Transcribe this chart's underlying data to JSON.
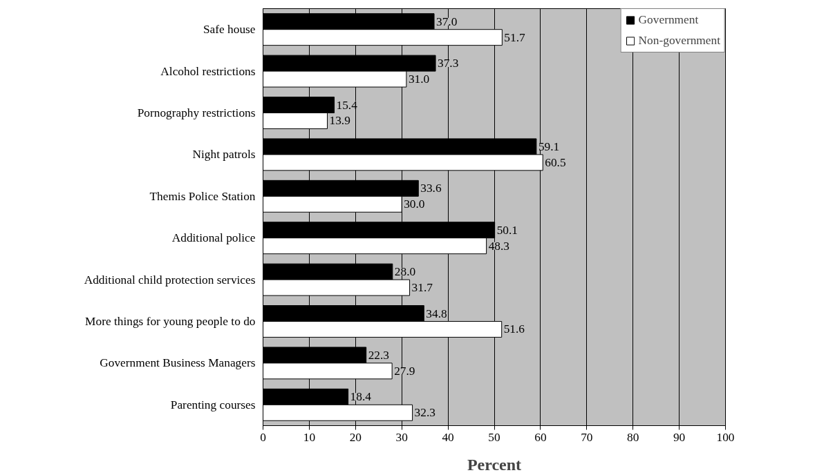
{
  "chart_data": {
    "type": "bar",
    "orientation": "horizontal",
    "xlabel": "Percent",
    "categories": [
      "Safe house",
      "Alcohol restrictions",
      "Pornography restrictions",
      "Night patrols",
      "Themis Police Station",
      "Additional police",
      "Additional child protection services",
      "More things for young people to do",
      "Government Business Managers",
      "Parenting courses"
    ],
    "series": [
      {
        "name": "Government",
        "color": "#000000",
        "values": [
          37.0,
          37.3,
          15.4,
          59.1,
          33.6,
          50.1,
          28.0,
          34.8,
          22.3,
          18.4
        ],
        "value_labels": [
          "37.0",
          "37.3",
          "15.4",
          "59.1",
          "33.6",
          "50.1",
          "28.0",
          "34.8",
          "22.3",
          "18.4"
        ]
      },
      {
        "name": "Non-government",
        "color": "#ffffff",
        "values": [
          51.7,
          31.0,
          13.9,
          60.5,
          30.0,
          48.3,
          31.7,
          51.6,
          27.9,
          32.3
        ],
        "value_labels": [
          "51.7",
          "31.0",
          "13.9",
          "60.5",
          "30.0",
          "48.3",
          "31.7",
          "51.6",
          "27.9",
          "32.3"
        ]
      }
    ],
    "xlim": [
      0,
      100
    ],
    "xticks": [
      0,
      10,
      20,
      30,
      40,
      50,
      60,
      70,
      80,
      90,
      100
    ],
    "grid": "x",
    "legend": "top right"
  }
}
